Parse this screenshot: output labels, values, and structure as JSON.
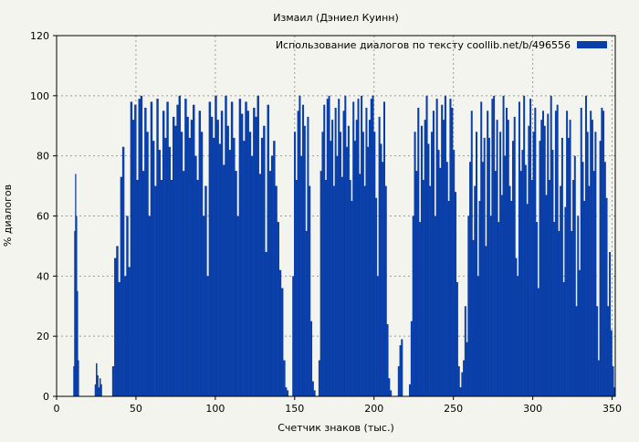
{
  "chart_data": {
    "type": "bar",
    "title": "Измаил (Дэниел Куинн)",
    "xlabel": "Счетчик знаков (тыс.)",
    "ylabel": "% диалогов",
    "xlim": [
      0,
      352
    ],
    "ylim": [
      0,
      120
    ],
    "x_ticks": [
      0,
      50,
      100,
      150,
      200,
      250,
      300,
      350
    ],
    "y_ticks": [
      0,
      20,
      40,
      60,
      80,
      100,
      120
    ],
    "grid": true,
    "legend_position": "top-right",
    "series": [
      {
        "name": "Использование диалогов по тексту  coollib.net/b/496556",
        "color": "#0a3ea8",
        "segments": [
          {
            "from": 10.5,
            "to": 14.0,
            "values": [
              10,
              55,
              74,
              60,
              35,
              12
            ]
          },
          {
            "from": 24.0,
            "to": 28.5,
            "values": [
              4,
              11,
              7,
              3,
              6,
              4
            ]
          },
          {
            "from": 35.0,
            "to": 144.0,
            "values": [
              10,
              46,
              50,
              38,
              73,
              83,
              40,
              60,
              43,
              98,
              92,
              97,
              72,
              99,
              100,
              75,
              96,
              88,
              60,
              98,
              85,
              70,
              99,
              82,
              72,
              95,
              86,
              98,
              83,
              72,
              93,
              90,
              97,
              100,
              88,
              75,
              99,
              93,
              86,
              92,
              97,
              80,
              72,
              95,
              88,
              60,
              70,
              40,
              98,
              93,
              86,
              100,
              92,
              84,
              95,
              77,
              100,
              90,
              82,
              98,
              86,
              75,
              60,
              99,
              94,
              85,
              98,
              95,
              88,
              80,
              96,
              93,
              100,
              74,
              86,
              90,
              48,
              97,
              75,
              80,
              85,
              70,
              58,
              42,
              36,
              12
            ]
          },
          {
            "from": 144.0,
            "to": 146.0,
            "values": [
              3,
              2
            ]
          },
          {
            "from": 148.5,
            "to": 163.0,
            "values": [
              40,
              88,
              72,
              95,
              100,
              80,
              97,
              90,
              55,
              93,
              70,
              25,
              5,
              2
            ]
          },
          {
            "from": 165.0,
            "to": 211.0,
            "values": [
              12,
              75,
              88,
              97,
              72,
              99,
              100,
              85,
              92,
              70,
              96,
              80,
              99,
              88,
              73,
              95,
              100,
              83,
              90,
              72,
              65,
              98,
              85,
              92,
              99,
              74,
              100,
              88,
              70,
              96,
              83,
              92,
              99,
              100,
              88,
              66,
              40,
              93,
              84,
              78,
              98,
              70,
              24,
              6,
              2
            ]
          },
          {
            "from": 215.0,
            "to": 218.0,
            "values": [
              10,
              17,
              19
            ]
          },
          {
            "from": 222.0,
            "to": 255.0,
            "values": [
              4,
              25,
              60,
              88,
              75,
              96,
              58,
              90,
              72,
              92,
              100,
              84,
              70,
              88,
              95,
              60,
              99,
              82,
              76,
              97,
              92,
              100,
              78,
              65,
              99,
              96,
              82,
              68,
              38,
              10,
              3
            ]
          },
          {
            "from": 255.0,
            "to": 352.0,
            "values": [
              8,
              12,
              30,
              18,
              60,
              78,
              95,
              52,
              70,
              88,
              40,
              65,
              98,
              78,
              86,
              50,
              95,
              86,
              60,
              99,
              100,
              75,
              92,
              58,
              88,
              67,
              100,
              80,
              96,
              92,
              70,
              65,
              85,
              93,
              46,
              40,
              98,
              75,
              82,
              100,
              77,
              64,
              90,
              99,
              72,
              88,
              96,
              58,
              36,
              85,
              92,
              95,
              90,
              67,
              94,
              72,
              100,
              82,
              58,
              95,
              97,
              55,
              70,
              86,
              38,
              63,
              95,
              86,
              92,
              55,
              72,
              80,
              30,
              60,
              42,
              96,
              78,
              65,
              100,
              88,
              70,
              95,
              92,
              75,
              88,
              30,
              12,
              85,
              96,
              95,
              78,
              66,
              30,
              48,
              22,
              10,
              3
            ]
          }
        ]
      }
    ]
  }
}
